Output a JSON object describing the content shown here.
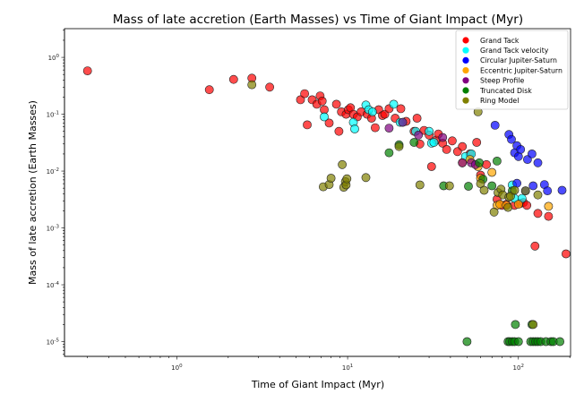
{
  "chart_data": {
    "type": "scatter",
    "title": "Mass of late accretion (Earth Masses) vs Time of Giant Impact (Myr)",
    "xlabel": "Time of Giant Impact (Myr)",
    "ylabel": "Mass of late accretion (Earth Masses)",
    "xscale": "log",
    "yscale": "log",
    "xlim": [
      0.22,
      202
    ],
    "ylim": [
      5.5e-06,
      3.2
    ],
    "x_ticks": [
      {
        "value": 1,
        "label": "10^0"
      },
      {
        "value": 10,
        "label": "10^1"
      },
      {
        "value": 100,
        "label": "10^2"
      }
    ],
    "y_ticks": [
      {
        "value": 1,
        "label": "10^0"
      },
      {
        "value": 0.1,
        "label": "10^-1"
      },
      {
        "value": 0.01,
        "label": "10^-2"
      },
      {
        "value": 0.001,
        "label": "10^-3"
      },
      {
        "value": 0.0001,
        "label": "10^-4"
      },
      {
        "value": 1e-05,
        "label": "10^-5"
      }
    ],
    "grid": false,
    "legend_position": "top-right",
    "series": [
      {
        "name": "Grand Tack",
        "color": "#ff0000",
        "points": [
          [
            0.3,
            0.58
          ],
          [
            1.55,
            0.27
          ],
          [
            2.15,
            0.41
          ],
          [
            2.75,
            0.43
          ],
          [
            3.5,
            0.3
          ],
          [
            5.3,
            0.18
          ],
          [
            5.6,
            0.23
          ],
          [
            5.8,
            0.065
          ],
          [
            6.2,
            0.18
          ],
          [
            6.6,
            0.15
          ],
          [
            6.9,
            0.21
          ],
          [
            7.1,
            0.17
          ],
          [
            7.3,
            0.12
          ],
          [
            7.8,
            0.07
          ],
          [
            8.6,
            0.15
          ],
          [
            8.9,
            0.05
          ],
          [
            9.2,
            0.11
          ],
          [
            9.8,
            0.1
          ],
          [
            10.1,
            0.12
          ],
          [
            10.4,
            0.13
          ],
          [
            10.8,
            0.1
          ],
          [
            11.4,
            0.09
          ],
          [
            12.0,
            0.11
          ],
          [
            13.0,
            0.1
          ],
          [
            13.8,
            0.085
          ],
          [
            14.5,
            0.058
          ],
          [
            15.2,
            0.12
          ],
          [
            16.0,
            0.095
          ],
          [
            16.5,
            0.1
          ],
          [
            17.5,
            0.125
          ],
          [
            19.0,
            0.085
          ],
          [
            20.5,
            0.125
          ],
          [
            22.0,
            0.075
          ],
          [
            24.5,
            0.05
          ],
          [
            25.5,
            0.085
          ],
          [
            26.5,
            0.03
          ],
          [
            28.0,
            0.052
          ],
          [
            30.0,
            0.043
          ],
          [
            31.0,
            0.012
          ],
          [
            33.0,
            0.035
          ],
          [
            34.0,
            0.045
          ],
          [
            36.0,
            0.031
          ],
          [
            38.0,
            0.024
          ],
          [
            41.0,
            0.034
          ],
          [
            44.0,
            0.022
          ],
          [
            47.0,
            0.027
          ],
          [
            52.0,
            0.02
          ],
          [
            57.0,
            0.032
          ],
          [
            60.0,
            0.0085
          ],
          [
            75.0,
            0.0032
          ],
          [
            80.0,
            0.0025
          ],
          [
            85.0,
            0.0026
          ],
          [
            95.0,
            0.0025
          ],
          [
            103.0,
            0.0027
          ],
          [
            107.0,
            0.0028
          ],
          [
            112.0,
            0.0025
          ],
          [
            130.0,
            0.0018
          ],
          [
            150.0,
            0.0016
          ],
          [
            125.0,
            0.00048
          ],
          [
            190.0,
            0.00035
          ],
          [
            65.0,
            0.013
          ]
        ]
      },
      {
        "name": "Grand Tack velocity",
        "color": "#00ffff",
        "points": [
          [
            7.3,
            0.09
          ],
          [
            10.8,
            0.072
          ],
          [
            11.0,
            0.055
          ],
          [
            12.8,
            0.145
          ],
          [
            13.3,
            0.12
          ],
          [
            14.0,
            0.11
          ],
          [
            18.6,
            0.15
          ],
          [
            20.3,
            0.072
          ],
          [
            21.0,
            0.072
          ],
          [
            25.0,
            0.05
          ],
          [
            30.0,
            0.05
          ],
          [
            31.0,
            0.031
          ],
          [
            32.0,
            0.032
          ],
          [
            49.0,
            0.018
          ],
          [
            53.0,
            0.02
          ],
          [
            95.0,
            0.0033
          ],
          [
            105.0,
            0.0033
          ],
          [
            92.0,
            0.0057
          ]
        ]
      },
      {
        "name": "Circular Jupiter-Saturn",
        "color": "#0000ff",
        "points": [
          [
            73.0,
            0.064
          ],
          [
            88.0,
            0.044
          ],
          [
            91.0,
            0.036
          ],
          [
            95.0,
            0.021
          ],
          [
            98.0,
            0.028
          ],
          [
            100.0,
            0.018
          ],
          [
            103.0,
            0.024
          ],
          [
            113.0,
            0.016
          ],
          [
            120.0,
            0.02
          ],
          [
            130.0,
            0.014
          ],
          [
            122.0,
            0.0055
          ],
          [
            142.0,
            0.0058
          ],
          [
            148.0,
            0.0045
          ],
          [
            110.0,
            0.0045
          ],
          [
            180.0,
            0.0046
          ],
          [
            98.0,
            0.0061
          ]
        ]
      },
      {
        "name": "Eccentric Jupiter-Saturn",
        "color": "#ffa500",
        "points": [
          [
            47.0,
            0.014
          ],
          [
            52.0,
            0.016
          ],
          [
            58.0,
            0.012
          ],
          [
            60.0,
            0.0075
          ],
          [
            70.0,
            0.0095
          ],
          [
            75.0,
            0.0025
          ],
          [
            78.0,
            0.0026
          ],
          [
            85.0,
            0.0025
          ],
          [
            100.0,
            0.0026
          ],
          [
            150.0,
            0.0024
          ]
        ]
      },
      {
        "name": "Steep Profile",
        "color": "#800080",
        "points": [
          [
            17.5,
            0.057
          ],
          [
            21.0,
            0.072
          ],
          [
            26.0,
            0.043
          ],
          [
            36.0,
            0.039
          ],
          [
            47.0,
            0.014
          ],
          [
            53.0,
            0.014
          ],
          [
            56.0,
            0.013
          ]
        ]
      },
      {
        "name": "Truncated Disk",
        "color": "#008000",
        "points": [
          [
            17.5,
            0.021
          ],
          [
            20.0,
            0.029
          ],
          [
            24.5,
            0.032
          ],
          [
            36.5,
            0.0055
          ],
          [
            51.0,
            0.0054
          ],
          [
            59.0,
            0.014
          ],
          [
            62.0,
            0.0072
          ],
          [
            70.0,
            0.0055
          ],
          [
            75.0,
            0.015
          ],
          [
            92.0,
            0.0045
          ],
          [
            96.0,
            2e-05
          ],
          [
            120.0,
            2e-05
          ],
          [
            50.0,
            1e-05
          ],
          [
            87.0,
            1e-05
          ],
          [
            89.0,
            1e-05
          ],
          [
            92.0,
            1e-05
          ],
          [
            95.0,
            1e-05
          ],
          [
            100.0,
            1e-05
          ],
          [
            118.0,
            1e-05
          ],
          [
            122.0,
            1e-05
          ],
          [
            126.0,
            1e-05
          ],
          [
            130.0,
            1e-05
          ],
          [
            135.0,
            1e-05
          ],
          [
            145.0,
            1e-05
          ],
          [
            155.0,
            1e-05
          ],
          [
            160.0,
            1e-05
          ],
          [
            175.0,
            1e-05
          ]
        ]
      },
      {
        "name": "Ring Model",
        "color": "#808000",
        "points": [
          [
            2.75,
            0.33
          ],
          [
            7.2,
            0.0053
          ],
          [
            7.8,
            0.0058
          ],
          [
            8.0,
            0.0075
          ],
          [
            9.3,
            0.013
          ],
          [
            9.5,
            0.0052
          ],
          [
            9.7,
            0.0065
          ],
          [
            9.8,
            0.0057
          ],
          [
            9.9,
            0.0073
          ],
          [
            12.8,
            0.0077
          ],
          [
            20.0,
            0.027
          ],
          [
            26.5,
            0.0057
          ],
          [
            39.5,
            0.0055
          ],
          [
            58.0,
            0.11
          ],
          [
            60.0,
            0.006
          ],
          [
            63.0,
            0.0046
          ],
          [
            72.0,
            0.0019
          ],
          [
            76.0,
            0.0042
          ],
          [
            79.0,
            0.0048
          ],
          [
            81.0,
            0.0038
          ],
          [
            87.0,
            0.0023
          ],
          [
            88.0,
            0.0035
          ],
          [
            90.0,
            0.0036
          ],
          [
            95.0,
            0.0046
          ],
          [
            110.0,
            0.0045
          ],
          [
            130.0,
            0.0038
          ],
          [
            122.0,
            2e-05
          ]
        ]
      }
    ]
  }
}
